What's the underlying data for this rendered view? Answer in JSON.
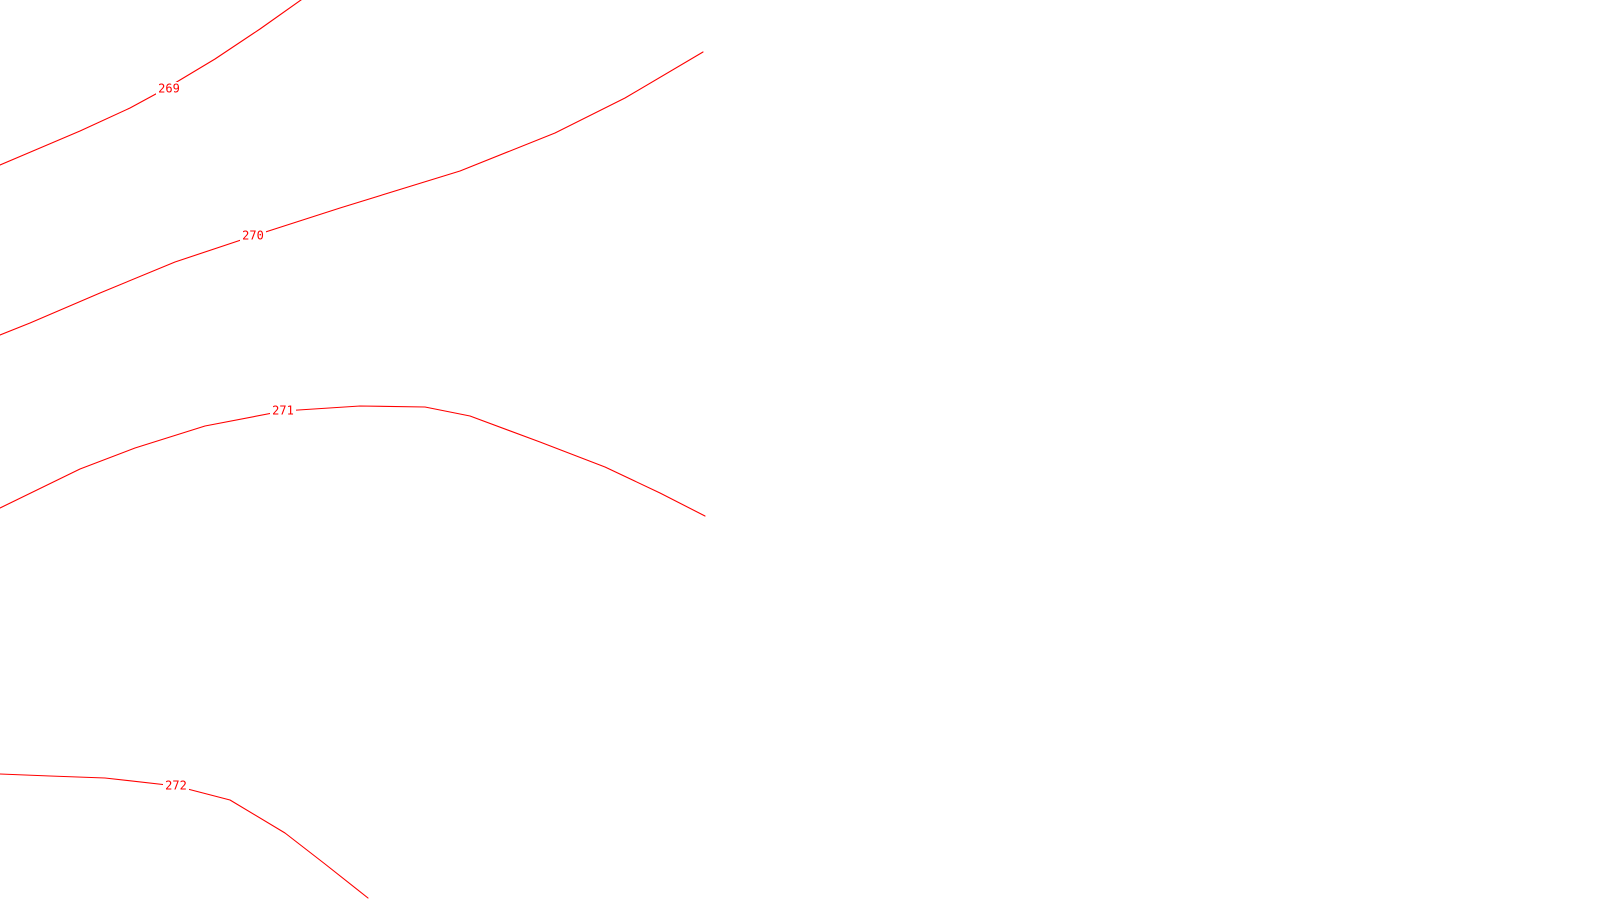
{
  "map": {
    "background_color": "#ffffff",
    "contour_color": "#ff0000",
    "contours": [
      {
        "id": "contour-269",
        "label": "269"
      },
      {
        "id": "contour-270",
        "label": "270"
      },
      {
        "id": "contour-271",
        "label": "271"
      },
      {
        "id": "contour-272",
        "label": "272"
      }
    ]
  }
}
